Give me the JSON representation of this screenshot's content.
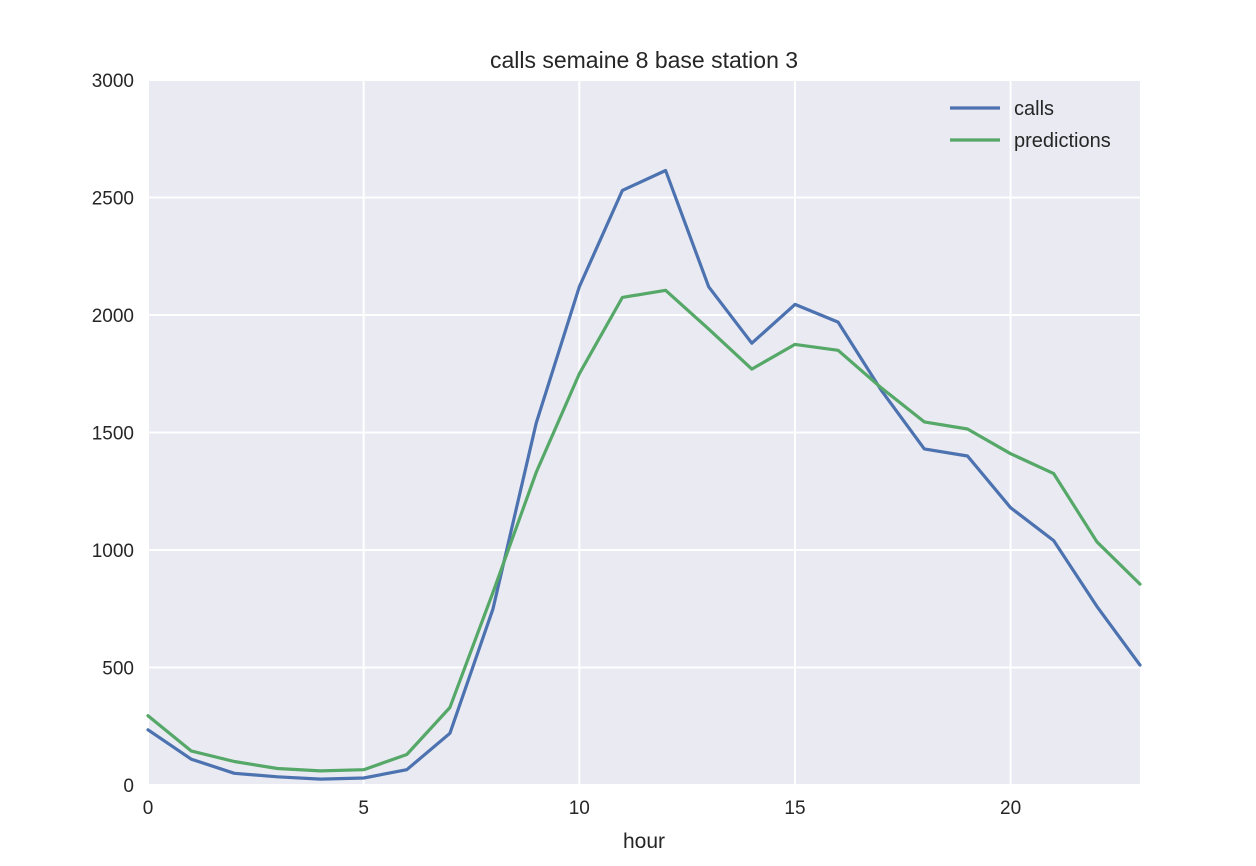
{
  "chart_data": {
    "type": "line",
    "title": "calls semaine 8 base station 3",
    "xlabel": "hour",
    "ylabel": "",
    "xlim": [
      0,
      23
    ],
    "ylim": [
      0,
      3000
    ],
    "xticks": [
      0,
      5,
      10,
      15,
      20
    ],
    "yticks": [
      0,
      500,
      1000,
      1500,
      2000,
      2500,
      3000
    ],
    "grid": true,
    "legend": "top-right",
    "x": [
      0,
      1,
      2,
      3,
      4,
      5,
      6,
      7,
      8,
      9,
      10,
      11,
      12,
      13,
      14,
      15,
      16,
      17,
      18,
      19,
      20,
      21,
      22,
      23
    ],
    "series": [
      {
        "name": "calls",
        "color": "#4c72b0",
        "values": [
          235,
          110,
          50,
          35,
          25,
          30,
          65,
          220,
          750,
          1540,
          2120,
          2530,
          2615,
          2120,
          1880,
          2045,
          1970,
          1680,
          1430,
          1400,
          1180,
          1040,
          760,
          510
        ]
      },
      {
        "name": "predictions",
        "color": "#55a868",
        "values": [
          295,
          145,
          100,
          70,
          60,
          65,
          130,
          330,
          820,
          1330,
          1750,
          2075,
          2105,
          1940,
          1770,
          1875,
          1850,
          1690,
          1545,
          1515,
          1410,
          1325,
          1035,
          855
        ]
      }
    ],
    "colors": {
      "background": "#eaeaf2",
      "grid": "#ffffff",
      "text": "#262626"
    }
  }
}
